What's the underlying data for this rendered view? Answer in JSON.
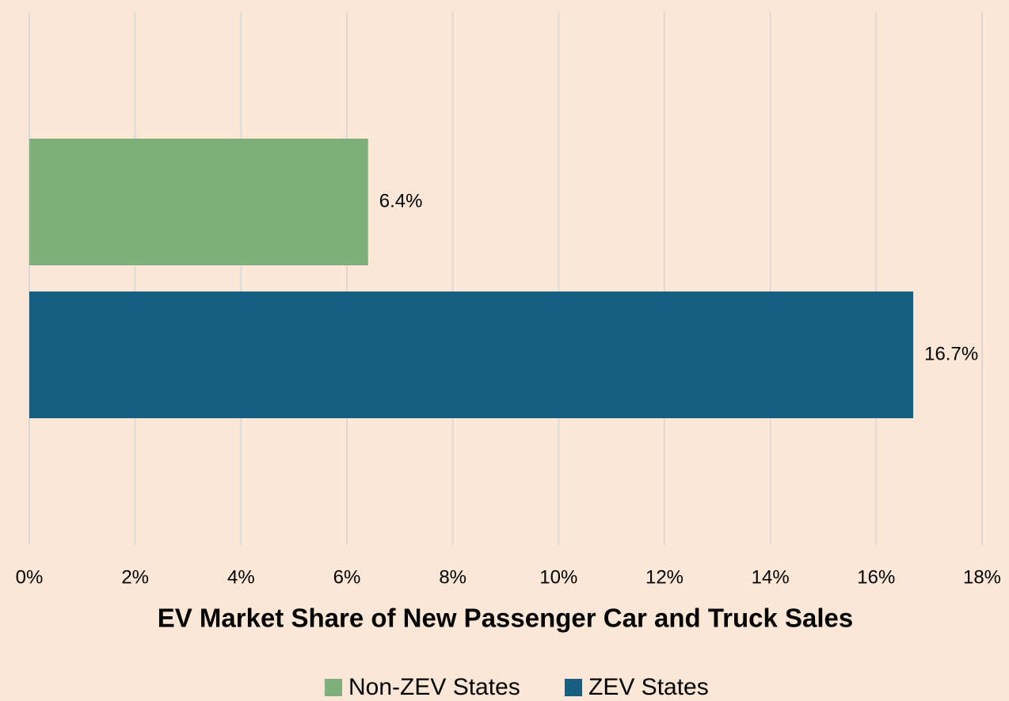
{
  "chart_data": {
    "type": "bar",
    "orientation": "horizontal",
    "xlabel": "EV Market Share of New Passenger Car and Truck Sales",
    "categories": [
      null
    ],
    "series": [
      {
        "name": "Non-ZEV States",
        "color": "#7db07a",
        "values": [
          6.4
        ],
        "value_labels": [
          "6.4%"
        ]
      },
      {
        "name": "ZEV States",
        "color": "#175f82",
        "values": [
          16.7
        ],
        "value_labels": [
          "16.7%"
        ]
      }
    ],
    "xlim": [
      0,
      18
    ],
    "xticks": [
      {
        "value": 0,
        "label": "0%"
      },
      {
        "value": 2,
        "label": "2%"
      },
      {
        "value": 4,
        "label": "4%"
      },
      {
        "value": 6,
        "label": "6%"
      },
      {
        "value": 8,
        "label": "8%"
      },
      {
        "value": 10,
        "label": "10%"
      },
      {
        "value": 12,
        "label": "12%"
      },
      {
        "value": 14,
        "label": "14%"
      },
      {
        "value": 16,
        "label": "16%"
      },
      {
        "value": 18,
        "label": "18%"
      }
    ],
    "grid": true,
    "legend": "bottom"
  }
}
